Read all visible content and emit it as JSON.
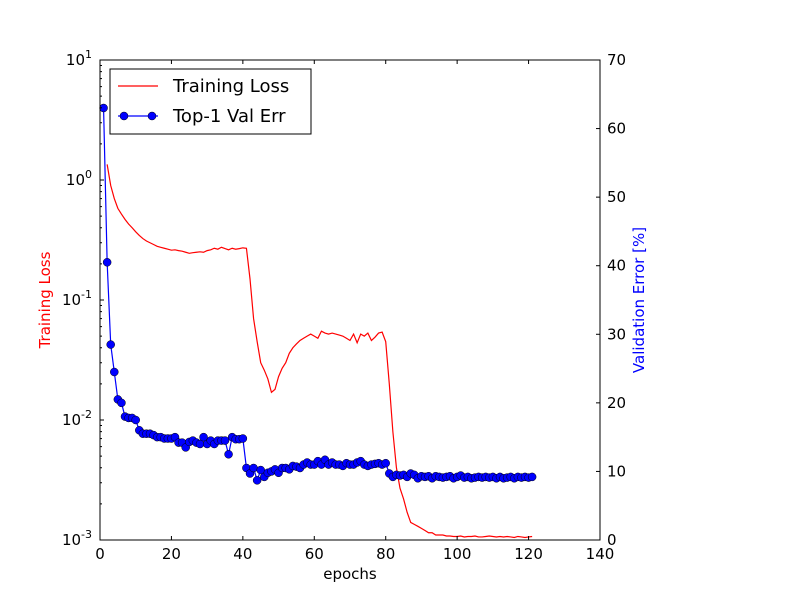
{
  "chart_data": {
    "type": "line",
    "xlabel": "epochs",
    "xlim": [
      0,
      140
    ],
    "x_ticks": [
      0,
      20,
      40,
      60,
      80,
      100,
      120,
      140
    ],
    "left_axis": {
      "label": "Training Loss",
      "color": "#ff0000",
      "scale": "log",
      "ylim": [
        0.001,
        10
      ],
      "ticks": [
        {
          "value": 10,
          "base": "10",
          "exp": "1"
        },
        {
          "value": 1,
          "base": "10",
          "exp": "0"
        },
        {
          "value": 0.1,
          "base": "10",
          "exp": "-1"
        },
        {
          "value": 0.01,
          "base": "10",
          "exp": "-2"
        },
        {
          "value": 0.001,
          "base": "10",
          "exp": "-3"
        }
      ]
    },
    "right_axis": {
      "label": "Validation Error [%]",
      "color": "#0000ff",
      "scale": "linear",
      "ylim": [
        0,
        70
      ],
      "ticks": [
        0,
        10,
        20,
        30,
        40,
        50,
        60,
        70
      ]
    },
    "legend": {
      "placement": "top-left",
      "entries": [
        {
          "label": "Training Loss",
          "color": "#ff0000",
          "marker": "none"
        },
        {
          "label": "Top-1 Val Err",
          "color": "#0000ff",
          "marker": "circle"
        }
      ]
    },
    "series": [
      {
        "name": "Training Loss",
        "axis": "left",
        "color": "#ff0000",
        "x": [
          2,
          3,
          4,
          5,
          6,
          7,
          8,
          9,
          10,
          11,
          12,
          13,
          14,
          15,
          16,
          17,
          18,
          19,
          20,
          21,
          22,
          23,
          24,
          25,
          26,
          27,
          28,
          29,
          30,
          31,
          32,
          33,
          34,
          35,
          36,
          37,
          38,
          39,
          40,
          41,
          42,
          43,
          44,
          45,
          46,
          47,
          48,
          49,
          50,
          51,
          52,
          53,
          54,
          55,
          56,
          57,
          58,
          59,
          60,
          61,
          62,
          63,
          64,
          65,
          66,
          67,
          68,
          69,
          70,
          71,
          72,
          73,
          74,
          75,
          76,
          77,
          78,
          79,
          80,
          81,
          82,
          83,
          84,
          85,
          86,
          87,
          88,
          89,
          90,
          91,
          92,
          93,
          94,
          95,
          96,
          97,
          98,
          99,
          100,
          101,
          102,
          103,
          104,
          105,
          106,
          107,
          108,
          109,
          110,
          111,
          112,
          113,
          114,
          115,
          116,
          117,
          118,
          119,
          120,
          121
        ],
        "y": [
          1.35,
          0.9,
          0.7,
          0.58,
          0.52,
          0.47,
          0.43,
          0.4,
          0.37,
          0.345,
          0.325,
          0.31,
          0.3,
          0.29,
          0.28,
          0.275,
          0.27,
          0.265,
          0.26,
          0.262,
          0.258,
          0.255,
          0.25,
          0.245,
          0.248,
          0.25,
          0.252,
          0.25,
          0.258,
          0.262,
          0.27,
          0.265,
          0.275,
          0.268,
          0.262,
          0.27,
          0.265,
          0.268,
          0.272,
          0.27,
          0.15,
          0.07,
          0.045,
          0.03,
          0.026,
          0.022,
          0.017,
          0.018,
          0.023,
          0.027,
          0.03,
          0.036,
          0.04,
          0.043,
          0.046,
          0.048,
          0.05,
          0.052,
          0.05,
          0.048,
          0.055,
          0.053,
          0.052,
          0.053,
          0.052,
          0.051,
          0.05,
          0.048,
          0.046,
          0.052,
          0.044,
          0.052,
          0.05,
          0.053,
          0.046,
          0.049,
          0.053,
          0.054,
          0.045,
          0.02,
          0.008,
          0.004,
          0.0027,
          0.0022,
          0.0017,
          0.0014,
          0.00135,
          0.0013,
          0.00125,
          0.0012,
          0.00115,
          0.00115,
          0.0011,
          0.0011,
          0.0011,
          0.00108,
          0.00108,
          0.00107,
          0.00107,
          0.00108,
          0.00106,
          0.00107,
          0.00107,
          0.00108,
          0.00106,
          0.00106,
          0.00107,
          0.00108,
          0.00107,
          0.00106,
          0.00107,
          0.00106,
          0.00107,
          0.00106,
          0.00105,
          0.00107,
          0.00106,
          0.00105,
          0.00106,
          0.00107
        ]
      },
      {
        "name": "Top-1 Val Err",
        "axis": "right",
        "color": "#0000ff",
        "x": [
          1,
          2,
          3,
          4,
          5,
          6,
          7,
          8,
          9,
          10,
          11,
          12,
          13,
          14,
          15,
          16,
          17,
          18,
          19,
          20,
          21,
          22,
          23,
          24,
          25,
          26,
          27,
          28,
          29,
          30,
          31,
          32,
          33,
          34,
          35,
          36,
          37,
          38,
          39,
          40,
          41,
          42,
          43,
          44,
          45,
          46,
          47,
          48,
          49,
          50,
          51,
          52,
          53,
          54,
          55,
          56,
          57,
          58,
          59,
          60,
          61,
          62,
          63,
          64,
          65,
          66,
          67,
          68,
          69,
          70,
          71,
          72,
          73,
          74,
          75,
          76,
          77,
          78,
          79,
          80,
          81,
          82,
          83,
          84,
          85,
          86,
          87,
          88,
          89,
          90,
          91,
          92,
          93,
          94,
          95,
          96,
          97,
          98,
          99,
          100,
          101,
          102,
          103,
          104,
          105,
          106,
          107,
          108,
          109,
          110,
          111,
          112,
          113,
          114,
          115,
          116,
          117,
          118,
          119,
          120,
          121
        ],
        "y": [
          63,
          40.5,
          28.5,
          24.5,
          20.5,
          20,
          18,
          17.8,
          17.8,
          17.5,
          16,
          15.5,
          15.5,
          15.5,
          15.3,
          15,
          15,
          14.8,
          14.8,
          14.8,
          15,
          14.2,
          14.2,
          13.5,
          14.3,
          14.5,
          14.2,
          14,
          15,
          14,
          14.5,
          14,
          14.5,
          14.5,
          14.5,
          12.5,
          15,
          14.7,
          14.7,
          14.8,
          10.5,
          9.7,
          10.5,
          8.7,
          10.2,
          9.2,
          9.8,
          10,
          10.3,
          9.8,
          10.5,
          10.5,
          10.3,
          10.8,
          10.7,
          10.5,
          11,
          11.3,
          11,
          11,
          11.5,
          11,
          11.7,
          11,
          11.3,
          11,
          11,
          10.8,
          11.2,
          11,
          11,
          11.3,
          11.5,
          11,
          10.8,
          11,
          11.1,
          11.2,
          11,
          11.2,
          9.7,
          9.2,
          9.5,
          9.4,
          9.5,
          9.2,
          9.7,
          9.5,
          9,
          9.3,
          9.2,
          9.3,
          9,
          9.3,
          9.2,
          9.1,
          9.2,
          9.3,
          9,
          9.2,
          9.4,
          9.1,
          9.2,
          9,
          9.1,
          9.2,
          9.1,
          9.2,
          9.1,
          9.2,
          9,
          9.2,
          9,
          9.1,
          9.2,
          9,
          9.2,
          9.1,
          9.2,
          9.1,
          9.2
        ]
      }
    ]
  }
}
